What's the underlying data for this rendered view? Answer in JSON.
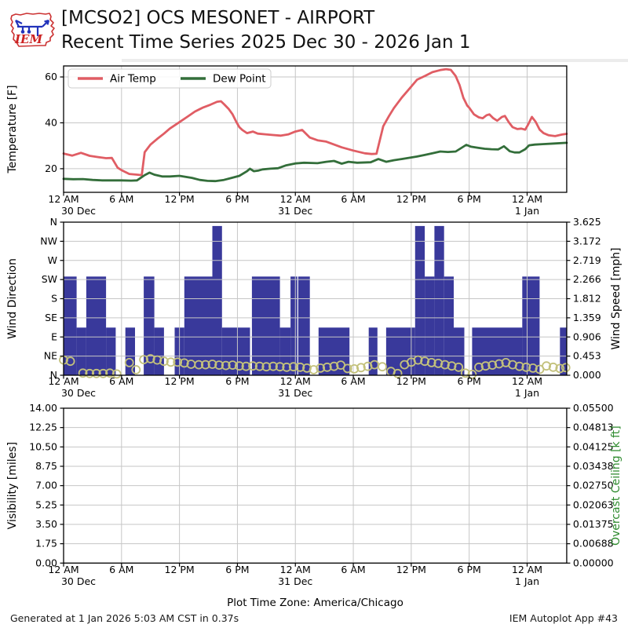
{
  "header": {
    "title_line1": "[MCSO2] OCS MESONET - AIRPORT",
    "title_line2": "Recent Time Series 2025 Dec 30 - 2026 Jan 1",
    "logo_text": "IEM"
  },
  "footer": {
    "generated": "Generated at 1 Jan 2026 5:03 AM CST in 0.37s",
    "app": "IEM Autoplot App #43"
  },
  "caption": "Plot Time Zone: America/Chicago",
  "colors": {
    "air_temp": "#e05d64",
    "dew_point": "#336e3a",
    "wind_bar": "#39399b",
    "wind_marker": "#c3c17c",
    "ceiling_label": "#2e8b2e",
    "grid": "#c6c6c6",
    "spine": "#000000",
    "logo_red": "#cc3333",
    "logo_blue": "#2233bb"
  },
  "xaxis": {
    "xlim": [
      0,
      52.1
    ],
    "ticks": [
      {
        "h": 0,
        "label": "12 AM"
      },
      {
        "h": 6,
        "label": "6 AM"
      },
      {
        "h": 12,
        "label": "12 PM"
      },
      {
        "h": 18,
        "label": "6 PM"
      },
      {
        "h": 24,
        "label": "12 AM"
      },
      {
        "h": 30,
        "label": "6 AM"
      },
      {
        "h": 36,
        "label": "12 PM"
      },
      {
        "h": 42,
        "label": "6 PM"
      },
      {
        "h": 48,
        "label": "12 AM"
      }
    ],
    "dates": [
      {
        "h": 0,
        "label": "30 Dec",
        "dx": 19
      },
      {
        "h": 24,
        "label": "31 Dec",
        "dx": 0
      },
      {
        "h": 48,
        "label": "1 Jan",
        "dx": 0
      }
    ]
  },
  "chart_data": [
    {
      "type": "line",
      "panel": "temperature",
      "ylabel": "Temperature [F]",
      "yticks": [
        20,
        40,
        60
      ],
      "ylim": [
        9.7,
        64.8
      ],
      "grid": true,
      "legend_position": "upper-left",
      "series": [
        {
          "name": "Air Temp",
          "color": "#e05d64",
          "points": [
            [
              0,
              26.6
            ],
            [
              0.9,
              25.7
            ],
            [
              1.8,
              26.9
            ],
            [
              2.7,
              25.6
            ],
            [
              3.5,
              25.1
            ],
            [
              4.4,
              24.6
            ],
            [
              5,
              24.7
            ],
            [
              5.6,
              20.4
            ],
            [
              6,
              19.4
            ],
            [
              6.8,
              17.7
            ],
            [
              7.6,
              17.4
            ],
            [
              8.1,
              17.2
            ],
            [
              8.4,
              27.2
            ],
            [
              9,
              30.5
            ],
            [
              9.7,
              33
            ],
            [
              10.4,
              35.3
            ],
            [
              11,
              37.5
            ],
            [
              12,
              40.3
            ],
            [
              12.8,
              42.6
            ],
            [
              13.6,
              44.9
            ],
            [
              14.4,
              46.6
            ],
            [
              15.2,
              47.9
            ],
            [
              15.9,
              49.2
            ],
            [
              16.3,
              49.4
            ],
            [
              16.6,
              48.2
            ],
            [
              17.1,
              46
            ],
            [
              17.5,
              43.7
            ],
            [
              17.9,
              40.3
            ],
            [
              18.2,
              38.1
            ],
            [
              18.5,
              36.9
            ],
            [
              19,
              35.5
            ],
            [
              19.6,
              36.2
            ],
            [
              20.1,
              35.3
            ],
            [
              20.9,
              35
            ],
            [
              21.7,
              34.7
            ],
            [
              22.5,
              34.4
            ],
            [
              23.3,
              35
            ],
            [
              24,
              36.2
            ],
            [
              24.7,
              36.9
            ],
            [
              25.5,
              33.6
            ],
            [
              26.3,
              32.4
            ],
            [
              27.2,
              31.8
            ],
            [
              28.8,
              29.3
            ],
            [
              30,
              27.9
            ],
            [
              31.2,
              26.7
            ],
            [
              31.9,
              26.4
            ],
            [
              32.4,
              26.5
            ],
            [
              33.1,
              38.5
            ],
            [
              33.7,
              43
            ],
            [
              34.2,
              46.4
            ],
            [
              35,
              50.9
            ],
            [
              35.8,
              54.8
            ],
            [
              36.6,
              58.8
            ],
            [
              37.4,
              60.4
            ],
            [
              38.2,
              62.1
            ],
            [
              39,
              63
            ],
            [
              39.6,
              63.4
            ],
            [
              40.1,
              63.1
            ],
            [
              40.6,
              60.4
            ],
            [
              41,
              56.5
            ],
            [
              41.4,
              50.9
            ],
            [
              41.8,
              47.5
            ],
            [
              42,
              46.6
            ],
            [
              42.5,
              43.7
            ],
            [
              43,
              42.4
            ],
            [
              43.4,
              42
            ],
            [
              43.8,
              43.3
            ],
            [
              44.1,
              43.7
            ],
            [
              44.5,
              42
            ],
            [
              44.9,
              40.9
            ],
            [
              45.4,
              42.6
            ],
            [
              45.7,
              43
            ],
            [
              46.1,
              40.3
            ],
            [
              46.5,
              38.1
            ],
            [
              47,
              37.3
            ],
            [
              47.4,
              37.5
            ],
            [
              47.8,
              37
            ],
            [
              48.1,
              39.2
            ],
            [
              48.5,
              42.6
            ],
            [
              48.9,
              40.3
            ],
            [
              49.3,
              37
            ],
            [
              49.7,
              35.5
            ],
            [
              50.2,
              34.6
            ],
            [
              50.9,
              34.2
            ],
            [
              51.6,
              34.9
            ],
            [
              52.1,
              35.2
            ]
          ]
        },
        {
          "name": "Dew Point",
          "color": "#336e3a",
          "points": [
            [
              0,
              15.6
            ],
            [
              1,
              15.4
            ],
            [
              2,
              15.5
            ],
            [
              3,
              15.1
            ],
            [
              4,
              14.9
            ],
            [
              5,
              14.9
            ],
            [
              6,
              14.9
            ],
            [
              7,
              14.8
            ],
            [
              7.6,
              14.9
            ],
            [
              8.4,
              17.2
            ],
            [
              8.9,
              18.3
            ],
            [
              9.4,
              17.4
            ],
            [
              10.2,
              16.6
            ],
            [
              11,
              16.6
            ],
            [
              12,
              16.9
            ],
            [
              13.3,
              16
            ],
            [
              14.1,
              15.1
            ],
            [
              14.9,
              14.7
            ],
            [
              15.7,
              14.6
            ],
            [
              16.6,
              15.1
            ],
            [
              17.4,
              16
            ],
            [
              18.2,
              16.9
            ],
            [
              19,
              18.9
            ],
            [
              19.3,
              20
            ],
            [
              19.7,
              18.9
            ],
            [
              20.2,
              19.2
            ],
            [
              20.6,
              19.7
            ],
            [
              21.4,
              20
            ],
            [
              22.2,
              20.2
            ],
            [
              23,
              21.4
            ],
            [
              24,
              22.3
            ],
            [
              24.9,
              22.6
            ],
            [
              26.3,
              22.4
            ],
            [
              27.2,
              23
            ],
            [
              28,
              23.4
            ],
            [
              28.8,
              22.2
            ],
            [
              29.5,
              23
            ],
            [
              30.4,
              22.6
            ],
            [
              31.8,
              22.8
            ],
            [
              32.6,
              24.2
            ],
            [
              33.4,
              23
            ],
            [
              34.2,
              23.7
            ],
            [
              35,
              24.2
            ],
            [
              36.6,
              25.3
            ],
            [
              37.4,
              26
            ],
            [
              38.2,
              26.7
            ],
            [
              39,
              27.5
            ],
            [
              39.8,
              27.3
            ],
            [
              40.6,
              27.5
            ],
            [
              41.7,
              30.4
            ],
            [
              42.2,
              29.6
            ],
            [
              42.9,
              29.1
            ],
            [
              43.6,
              28.7
            ],
            [
              44.3,
              28.5
            ],
            [
              45,
              28.4
            ],
            [
              45.6,
              29.8
            ],
            [
              46.2,
              27.6
            ],
            [
              46.7,
              27.1
            ],
            [
              47.2,
              27.1
            ],
            [
              47.8,
              28.5
            ],
            [
              48.2,
              30.2
            ],
            [
              48.8,
              30.5
            ],
            [
              49.6,
              30.7
            ],
            [
              50.8,
              31
            ],
            [
              52.1,
              31.3
            ]
          ]
        }
      ]
    },
    {
      "type": "bar",
      "panel": "wind",
      "ylabel": "Wind Direction",
      "ylabel_right": "Wind Speed [mph]",
      "yticks_left": [
        "N",
        "NE",
        "E",
        "SE",
        "S",
        "SW",
        "W",
        "NW",
        "N"
      ],
      "yticks_right": [
        "0.000",
        "0.453",
        "0.906",
        "1.359",
        "1.812",
        "2.266",
        "2.719",
        "3.172",
        "3.625"
      ],
      "ylim_deg": [
        0,
        360
      ],
      "ylim_mph": [
        0,
        3.625
      ],
      "grid": true,
      "bar_color": "#39399b",
      "marker_color": "#c3c17c",
      "bars_deg": [
        [
          0,
          1.35,
          232
        ],
        [
          1.35,
          2.35,
          112
        ],
        [
          2.35,
          4.4,
          232
        ],
        [
          4.4,
          5.4,
          112
        ],
        [
          6.4,
          7.4,
          112
        ],
        [
          8.3,
          9.4,
          232
        ],
        [
          9.4,
          10.4,
          112
        ],
        [
          11.5,
          12.5,
          112
        ],
        [
          12.5,
          15.4,
          232
        ],
        [
          15.4,
          16.4,
          351
        ],
        [
          16.4,
          19.3,
          112
        ],
        [
          19.5,
          22.4,
          232
        ],
        [
          22.4,
          23.5,
          112
        ],
        [
          23.5,
          24.2,
          232
        ],
        [
          24.3,
          25.5,
          232
        ],
        [
          26.4,
          29.6,
          112
        ],
        [
          31.6,
          32.5,
          112
        ],
        [
          33.4,
          36.4,
          112
        ],
        [
          36.4,
          37.4,
          351
        ],
        [
          37.4,
          38.4,
          232
        ],
        [
          38.4,
          39.4,
          351
        ],
        [
          39.4,
          40.4,
          232
        ],
        [
          40.4,
          41.5,
          112
        ],
        [
          42.3,
          47.5,
          112
        ],
        [
          47.5,
          49.3,
          232
        ],
        [
          51.4,
          52.1,
          112
        ]
      ],
      "speed_markers_mph": [
        [
          0,
          0.36
        ],
        [
          0.7,
          0.33
        ],
        [
          2,
          0.05
        ],
        [
          2.7,
          0.04
        ],
        [
          3.4,
          0.04
        ],
        [
          4.1,
          0.04
        ],
        [
          4.8,
          0.05
        ],
        [
          5.5,
          0.03
        ],
        [
          6.8,
          0.3
        ],
        [
          7.5,
          0.13
        ],
        [
          8.3,
          0.37
        ],
        [
          9,
          0.39
        ],
        [
          9.7,
          0.36
        ],
        [
          10.4,
          0.33
        ],
        [
          11.1,
          0.31
        ],
        [
          11.8,
          0.31
        ],
        [
          12.5,
          0.29
        ],
        [
          13.2,
          0.26
        ],
        [
          14,
          0.25
        ],
        [
          14.7,
          0.25
        ],
        [
          15.4,
          0.26
        ],
        [
          16.1,
          0.24
        ],
        [
          16.8,
          0.23
        ],
        [
          17.5,
          0.24
        ],
        [
          18.2,
          0.22
        ],
        [
          18.9,
          0.21
        ],
        [
          19.6,
          0.22
        ],
        [
          20.3,
          0.21
        ],
        [
          21,
          0.2
        ],
        [
          21.7,
          0.21
        ],
        [
          22.4,
          0.2
        ],
        [
          23.1,
          0.19
        ],
        [
          23.8,
          0.2
        ],
        [
          24.5,
          0.19
        ],
        [
          25.2,
          0.17
        ],
        [
          25.9,
          0.13
        ],
        [
          26.6,
          0.17
        ],
        [
          27.3,
          0.19
        ],
        [
          28,
          0.21
        ],
        [
          28.7,
          0.24
        ],
        [
          29.4,
          0.16
        ],
        [
          30.1,
          0.15
        ],
        [
          30.8,
          0.18
        ],
        [
          31.5,
          0.21
        ],
        [
          32.2,
          0.25
        ],
        [
          33,
          0.2
        ],
        [
          33.9,
          0.09
        ],
        [
          34.6,
          0.04
        ],
        [
          35.3,
          0.25
        ],
        [
          36,
          0.31
        ],
        [
          36.7,
          0.36
        ],
        [
          37.4,
          0.33
        ],
        [
          38.1,
          0.3
        ],
        [
          38.8,
          0.28
        ],
        [
          39.5,
          0.25
        ],
        [
          40.2,
          0.22
        ],
        [
          40.9,
          0.19
        ],
        [
          41.6,
          0.05
        ],
        [
          42.3,
          0.02
        ],
        [
          43,
          0.19
        ],
        [
          43.7,
          0.22
        ],
        [
          44.4,
          0.24
        ],
        [
          45.1,
          0.27
        ],
        [
          45.8,
          0.3
        ],
        [
          46.5,
          0.25
        ],
        [
          47.2,
          0.21
        ],
        [
          47.9,
          0.19
        ],
        [
          48.6,
          0.17
        ],
        [
          49.3,
          0.14
        ],
        [
          50,
          0.22
        ],
        [
          50.7,
          0.19
        ],
        [
          51.4,
          0.16
        ],
        [
          52,
          0.18
        ]
      ]
    },
    {
      "type": "empty",
      "panel": "visibility",
      "ylabel": "Visibility [miles]",
      "ylabel_right": "Overcast Ceiling [k ft]",
      "ylabel_right_color": "#2e8b2e",
      "yticks_left": [
        "0.00",
        "1.75",
        "3.50",
        "5.25",
        "7.00",
        "8.75",
        "10.50",
        "12.25",
        "14.00"
      ],
      "yticks_right": [
        "0.00000",
        "0.00688",
        "0.01375",
        "0.02063",
        "0.02750",
        "0.03438",
        "0.04125",
        "0.04813",
        "0.05500"
      ],
      "ylim_left": [
        0,
        14
      ],
      "grid": true,
      "series": []
    }
  ]
}
